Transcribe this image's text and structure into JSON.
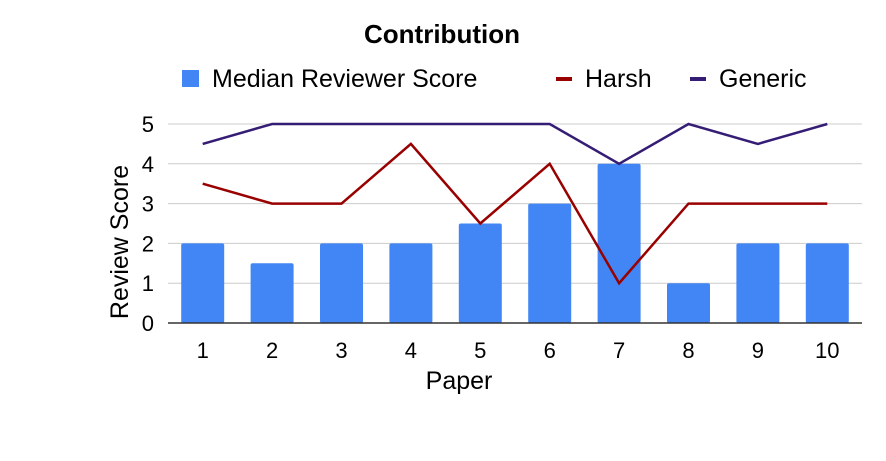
{
  "chart_data": {
    "type": "bar",
    "title": "Contribution",
    "xlabel": "Paper",
    "ylabel": "Review Score",
    "categories": [
      "1",
      "2",
      "3",
      "4",
      "5",
      "6",
      "7",
      "8",
      "9",
      "10"
    ],
    "yticks": [
      "0",
      "1",
      "2",
      "3",
      "4",
      "5"
    ],
    "ylim": [
      0,
      5
    ],
    "grid": true,
    "legend_position": "top",
    "series": [
      {
        "name": "Median Reviewer Score",
        "kind": "bar",
        "color": "#4285f4",
        "values": [
          2,
          1.5,
          2,
          2,
          2.5,
          3,
          4,
          1,
          2,
          2
        ]
      },
      {
        "name": "Harsh",
        "kind": "line",
        "color": "#990000",
        "values": [
          3.5,
          3,
          3,
          4.5,
          2.5,
          4,
          1,
          3,
          3,
          3
        ]
      },
      {
        "name": "Generic",
        "kind": "line",
        "color": "#351c75",
        "values": [
          4.5,
          5,
          5,
          5,
          5,
          5,
          4,
          5,
          4.5,
          5
        ]
      }
    ]
  }
}
